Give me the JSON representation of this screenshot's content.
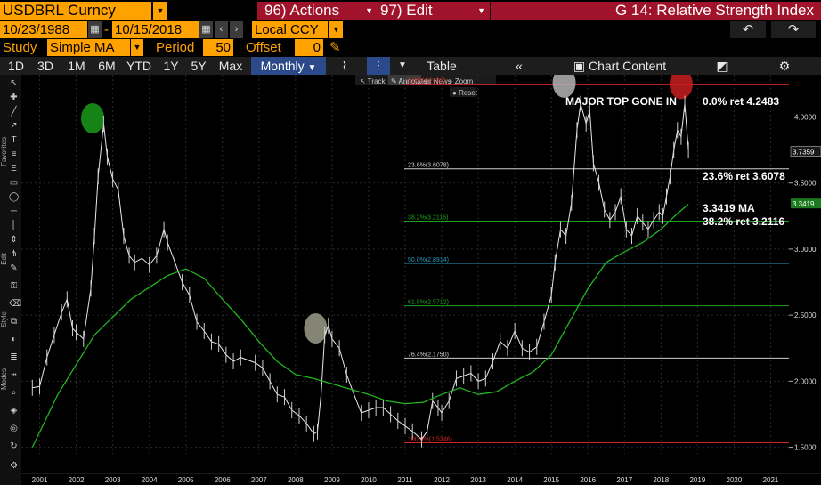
{
  "header": {
    "ticker": "USDBRL Curncy",
    "actions_label": "96) Actions",
    "edit_label": "97) Edit",
    "function_title": "G 14: Relative Strength Index"
  },
  "range": {
    "start_date": "10/23/1988",
    "end_date": "10/15/2018",
    "currency": "Local CCY"
  },
  "study": {
    "label": "Study",
    "type": "Simple MA",
    "period_label": "Period",
    "period": "50",
    "offset_label": "Offset",
    "offset": "0"
  },
  "toolbar": {
    "periods": [
      "1D",
      "3D",
      "1M",
      "6M",
      "YTD",
      "1Y",
      "5Y",
      "Max"
    ],
    "frequency": "Monthly",
    "table_label": "Table",
    "chart_content_label": "Chart Content"
  },
  "overlay_tools": {
    "track": "Track",
    "annotate": "Annotate",
    "news": "News",
    "zoom": "Zoom",
    "reset": "Reset"
  },
  "sidebar_labels": [
    "Favorites",
    "Edit",
    "Style",
    "Modes"
  ],
  "colors": {
    "accent_orange": "#ffa200",
    "action_red": "#a1132a",
    "ma_green": "#22b422",
    "fib_red": "#d22222",
    "fib_white": "#cfcfcf",
    "fib_green": "#1fa01f",
    "fib_cyan": "#2a9bbf"
  },
  "chart_data": {
    "type": "line",
    "y_axis": {
      "range": [
        1.45,
        4.32
      ],
      "ticks": [
        "4.0000",
        "3.5000",
        "3.0000",
        "2.5000",
        "2.0000",
        "1.5000"
      ]
    },
    "x_axis": {
      "labels": [
        "2001",
        "2002",
        "2003",
        "2004",
        "2005",
        "2006",
        "2007",
        "2008",
        "2009",
        "2010",
        "2011",
        "2012",
        "2013",
        "2014",
        "2015",
        "2016",
        "2017",
        "2018",
        "2019",
        "2020",
        "2021"
      ]
    },
    "last_price": {
      "label": "3.7359",
      "value": 3.7359
    },
    "ma_value": {
      "label": "3.3419",
      "value": 3.3419
    },
    "series": [
      {
        "name": "USDBRL",
        "points": [
          [
            2000.8,
            1.95
          ],
          [
            2001.0,
            1.96
          ],
          [
            2001.2,
            2.18
          ],
          [
            2001.4,
            2.35
          ],
          [
            2001.6,
            2.52
          ],
          [
            2001.75,
            2.62
          ],
          [
            2001.9,
            2.4
          ],
          [
            2002.0,
            2.37
          ],
          [
            2002.2,
            2.32
          ],
          [
            2002.4,
            2.7
          ],
          [
            2002.5,
            3.1
          ],
          [
            2002.6,
            3.55
          ],
          [
            2002.75,
            3.95
          ],
          [
            2002.85,
            3.7
          ],
          [
            2003.0,
            3.53
          ],
          [
            2003.15,
            3.45
          ],
          [
            2003.3,
            3.1
          ],
          [
            2003.45,
            2.95
          ],
          [
            2003.6,
            2.9
          ],
          [
            2003.8,
            2.93
          ],
          [
            2004.0,
            2.88
          ],
          [
            2004.2,
            2.95
          ],
          [
            2004.4,
            3.15
          ],
          [
            2004.5,
            3.05
          ],
          [
            2004.7,
            2.9
          ],
          [
            2004.9,
            2.75
          ],
          [
            2005.1,
            2.65
          ],
          [
            2005.3,
            2.45
          ],
          [
            2005.5,
            2.38
          ],
          [
            2005.7,
            2.3
          ],
          [
            2005.9,
            2.28
          ],
          [
            2006.1,
            2.2
          ],
          [
            2006.3,
            2.15
          ],
          [
            2006.5,
            2.18
          ],
          [
            2006.7,
            2.16
          ],
          [
            2006.9,
            2.14
          ],
          [
            2007.1,
            2.1
          ],
          [
            2007.3,
            2.0
          ],
          [
            2007.5,
            1.9
          ],
          [
            2007.7,
            1.88
          ],
          [
            2007.9,
            1.78
          ],
          [
            2008.1,
            1.74
          ],
          [
            2008.3,
            1.68
          ],
          [
            2008.5,
            1.6
          ],
          [
            2008.6,
            1.62
          ],
          [
            2008.7,
            1.9
          ],
          [
            2008.8,
            2.35
          ],
          [
            2008.9,
            2.42
          ],
          [
            2009.0,
            2.32
          ],
          [
            2009.2,
            2.25
          ],
          [
            2009.4,
            2.05
          ],
          [
            2009.6,
            1.9
          ],
          [
            2009.8,
            1.76
          ],
          [
            2010.0,
            1.78
          ],
          [
            2010.2,
            1.8
          ],
          [
            2010.4,
            1.8
          ],
          [
            2010.6,
            1.75
          ],
          [
            2010.8,
            1.7
          ],
          [
            2011.0,
            1.66
          ],
          [
            2011.2,
            1.62
          ],
          [
            2011.45,
            1.56
          ],
          [
            2011.6,
            1.62
          ],
          [
            2011.75,
            1.85
          ],
          [
            2011.9,
            1.8
          ],
          [
            2012.0,
            1.76
          ],
          [
            2012.2,
            1.85
          ],
          [
            2012.4,
            2.02
          ],
          [
            2012.6,
            2.04
          ],
          [
            2012.8,
            2.06
          ],
          [
            2013.0,
            2.0
          ],
          [
            2013.2,
            2.02
          ],
          [
            2013.4,
            2.15
          ],
          [
            2013.6,
            2.3
          ],
          [
            2013.8,
            2.25
          ],
          [
            2014.0,
            2.38
          ],
          [
            2014.2,
            2.25
          ],
          [
            2014.4,
            2.22
          ],
          [
            2014.6,
            2.26
          ],
          [
            2014.8,
            2.45
          ],
          [
            2015.0,
            2.65
          ],
          [
            2015.1,
            2.9
          ],
          [
            2015.25,
            3.15
          ],
          [
            2015.4,
            3.1
          ],
          [
            2015.55,
            3.35
          ],
          [
            2015.7,
            3.9
          ],
          [
            2015.8,
            4.1
          ],
          [
            2015.95,
            3.95
          ],
          [
            2016.05,
            4.05
          ],
          [
            2016.15,
            3.65
          ],
          [
            2016.3,
            3.5
          ],
          [
            2016.45,
            3.3
          ],
          [
            2016.6,
            3.22
          ],
          [
            2016.75,
            3.28
          ],
          [
            2016.9,
            3.4
          ],
          [
            2017.05,
            3.15
          ],
          [
            2017.2,
            3.1
          ],
          [
            2017.35,
            3.25
          ],
          [
            2017.5,
            3.2
          ],
          [
            2017.65,
            3.15
          ],
          [
            2017.8,
            3.22
          ],
          [
            2017.95,
            3.28
          ],
          [
            2018.05,
            3.25
          ],
          [
            2018.15,
            3.4
          ],
          [
            2018.25,
            3.55
          ],
          [
            2018.35,
            3.75
          ],
          [
            2018.45,
            3.9
          ],
          [
            2018.55,
            3.85
          ],
          [
            2018.65,
            4.1
          ],
          [
            2018.75,
            3.75
          ]
        ]
      },
      {
        "name": "Simple MA 50",
        "points": [
          [
            2000.8,
            1.5
          ],
          [
            2001.5,
            1.9
          ],
          [
            2002.5,
            2.35
          ],
          [
            2003.5,
            2.62
          ],
          [
            2004.5,
            2.8
          ],
          [
            2005.0,
            2.85
          ],
          [
            2005.5,
            2.78
          ],
          [
            2006.0,
            2.62
          ],
          [
            2006.5,
            2.47
          ],
          [
            2007.0,
            2.3
          ],
          [
            2007.5,
            2.15
          ],
          [
            2008.0,
            2.05
          ],
          [
            2008.5,
            2.02
          ],
          [
            2009.0,
            1.98
          ],
          [
            2009.5,
            1.94
          ],
          [
            2010.0,
            1.9
          ],
          [
            2010.5,
            1.85
          ],
          [
            2011.0,
            1.83
          ],
          [
            2011.5,
            1.84
          ],
          [
            2012.0,
            1.9
          ],
          [
            2012.5,
            1.95
          ],
          [
            2013.0,
            1.9
          ],
          [
            2013.5,
            1.92
          ],
          [
            2014.0,
            2.0
          ],
          [
            2014.5,
            2.07
          ],
          [
            2015.0,
            2.2
          ],
          [
            2015.5,
            2.45
          ],
          [
            2016.0,
            2.7
          ],
          [
            2016.5,
            2.9
          ],
          [
            2017.0,
            2.98
          ],
          [
            2017.5,
            3.05
          ],
          [
            2018.0,
            3.15
          ],
          [
            2018.45,
            3.27
          ],
          [
            2018.75,
            3.34
          ]
        ]
      }
    ],
    "fib_levels": [
      {
        "tag": "0.0%(4.2483)",
        "value": 4.2483,
        "color": "#d22222"
      },
      {
        "tag": "23.6%(3.6078)",
        "value": 3.6078,
        "color": "#cfcfcf"
      },
      {
        "tag": "38.2%(3.2116)",
        "value": 3.2116,
        "color": "#1fa01f"
      },
      {
        "tag": "50.0%(2.8914)",
        "value": 2.8914,
        "color": "#2a9bbf"
      },
      {
        "tag": "61.8%(2.5712)",
        "value": 2.5712,
        "color": "#1fa01f"
      },
      {
        "tag": "76.4%(2.1750)",
        "value": 2.175,
        "color": "#cfcfcf"
      },
      {
        "tag": "100.0%(1.5346)",
        "value": 1.5346,
        "color": "#d22222"
      }
    ],
    "annotations": {
      "major_top": "MAJOR TOP GONE IN",
      "ret_0": "0.0% ret 4.2483",
      "ret_236": "23.6% ret 3.6078",
      "ma_label": "3.3419 MA",
      "ret_382": "38.2% ret 3.2116"
    },
    "circles": [
      {
        "x": 2002.45,
        "y": 3.99,
        "color": "#1a9a1a"
      },
      {
        "x": 2008.55,
        "y": 2.4,
        "color": "#9c9c8a"
      },
      {
        "x": 2015.35,
        "y": 4.26,
        "color": "#b4b4b4"
      },
      {
        "x": 2018.55,
        "y": 4.25,
        "color": "#c81e1e"
      }
    ]
  }
}
